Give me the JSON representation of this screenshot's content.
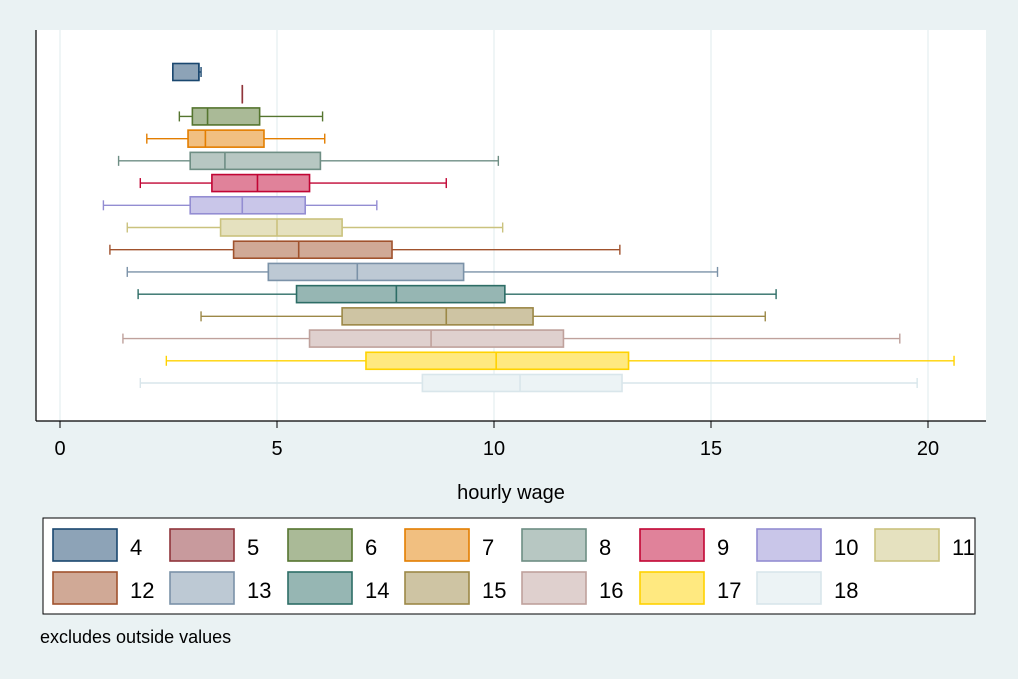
{
  "chart_data": {
    "type": "box",
    "orientation": "horizontal",
    "xlabel": "hourly wage",
    "xlim": [
      -0.55,
      21.8
    ],
    "xticks": [
      0,
      5,
      10,
      15,
      20
    ],
    "xtick_labels": [
      "0",
      "5",
      "10",
      "15",
      "20"
    ],
    "grid": true,
    "legend_position": "bottom",
    "note": "excludes outside values",
    "series": [
      {
        "name": "4",
        "whisker_low": 2.6,
        "q1": 2.6,
        "median": 3.2,
        "q3": 3.2,
        "whisker_high": 3.25,
        "color": "#1a476f"
      },
      {
        "name": "5",
        "whisker_low": 4.2,
        "q1": 4.2,
        "median": 4.2,
        "q3": 4.2,
        "whisker_high": 4.2,
        "color": "#90353b"
      },
      {
        "name": "6",
        "whisker_low": 2.75,
        "q1": 3.05,
        "median": 3.4,
        "q3": 4.6,
        "whisker_high": 6.05,
        "color": "#55752f"
      },
      {
        "name": "7",
        "whisker_low": 2.0,
        "q1": 2.95,
        "median": 3.35,
        "q3": 4.7,
        "whisker_high": 6.1,
        "color": "#e37e00"
      },
      {
        "name": "8",
        "whisker_low": 1.35,
        "q1": 3.0,
        "median": 3.8,
        "q3": 6.0,
        "whisker_high": 10.1,
        "color": "#6e8e84"
      },
      {
        "name": "9",
        "whisker_low": 1.85,
        "q1": 3.5,
        "median": 4.55,
        "q3": 5.75,
        "whisker_high": 8.9,
        "color": "#c10534"
      },
      {
        "name": "10",
        "whisker_low": 1.0,
        "q1": 3.0,
        "median": 4.2,
        "q3": 5.65,
        "whisker_high": 7.3,
        "color": "#938dd2"
      },
      {
        "name": "11",
        "whisker_low": 1.55,
        "q1": 3.7,
        "median": 5.0,
        "q3": 6.5,
        "whisker_high": 10.2,
        "color": "#cac27e"
      },
      {
        "name": "12",
        "whisker_low": 1.15,
        "q1": 4.0,
        "median": 5.5,
        "q3": 7.65,
        "whisker_high": 12.9,
        "color": "#a0522d"
      },
      {
        "name": "13",
        "whisker_low": 1.55,
        "q1": 4.8,
        "median": 6.85,
        "q3": 9.3,
        "whisker_high": 15.15,
        "color": "#7b92a8"
      },
      {
        "name": "14",
        "whisker_low": 1.8,
        "q1": 5.45,
        "median": 7.75,
        "q3": 10.25,
        "whisker_high": 16.5,
        "color": "#2d6d66"
      },
      {
        "name": "15",
        "whisker_low": 3.25,
        "q1": 6.5,
        "median": 8.9,
        "q3": 10.9,
        "whisker_high": 16.25,
        "color": "#9c8847"
      },
      {
        "name": "16",
        "whisker_low": 1.45,
        "q1": 5.75,
        "median": 8.55,
        "q3": 11.6,
        "whisker_high": 19.35,
        "color": "#bfa19c"
      },
      {
        "name": "17",
        "whisker_low": 2.45,
        "q1": 7.05,
        "median": 10.05,
        "q3": 13.1,
        "whisker_high": 20.6,
        "color": "#ffd200"
      },
      {
        "name": "18",
        "whisker_low": 1.85,
        "q1": 8.35,
        "median": 10.6,
        "q3": 12.95,
        "whisker_high": 19.75,
        "color": "#d9e6eb"
      }
    ]
  }
}
